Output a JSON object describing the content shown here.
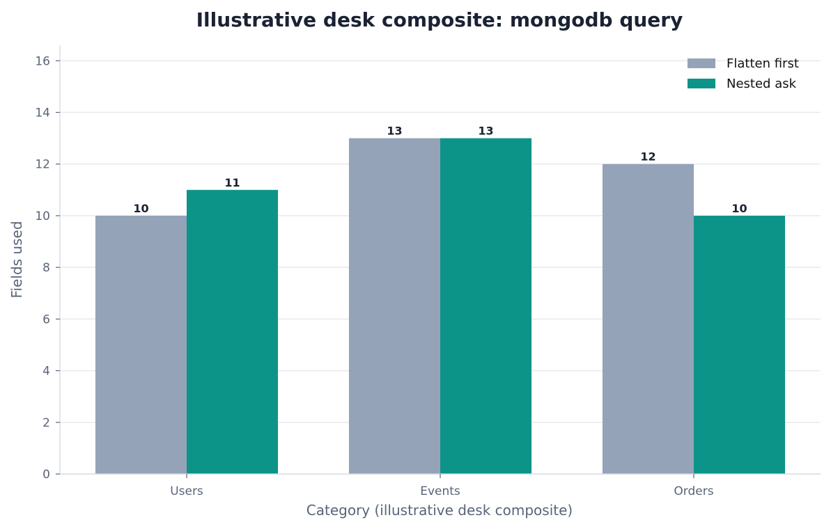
{
  "chart_data": {
    "type": "bar",
    "title": "Illustrative desk composite: mongodb query",
    "xlabel": "Category (illustrative desk composite)",
    "ylabel": "Fields used",
    "categories": [
      "Users",
      "Events",
      "Orders"
    ],
    "series": [
      {
        "name": "Flatten first",
        "values": [
          10,
          13,
          12
        ],
        "color": "#94a3b8"
      },
      {
        "name": "Nested ask",
        "values": [
          11,
          13,
          10
        ],
        "color": "#0d9488"
      }
    ],
    "ylim": [
      0,
      16.6
    ],
    "yticks": [
      0,
      2,
      4,
      6,
      8,
      10,
      12,
      14,
      16
    ],
    "grid": true,
    "legend_position": "top-right"
  }
}
